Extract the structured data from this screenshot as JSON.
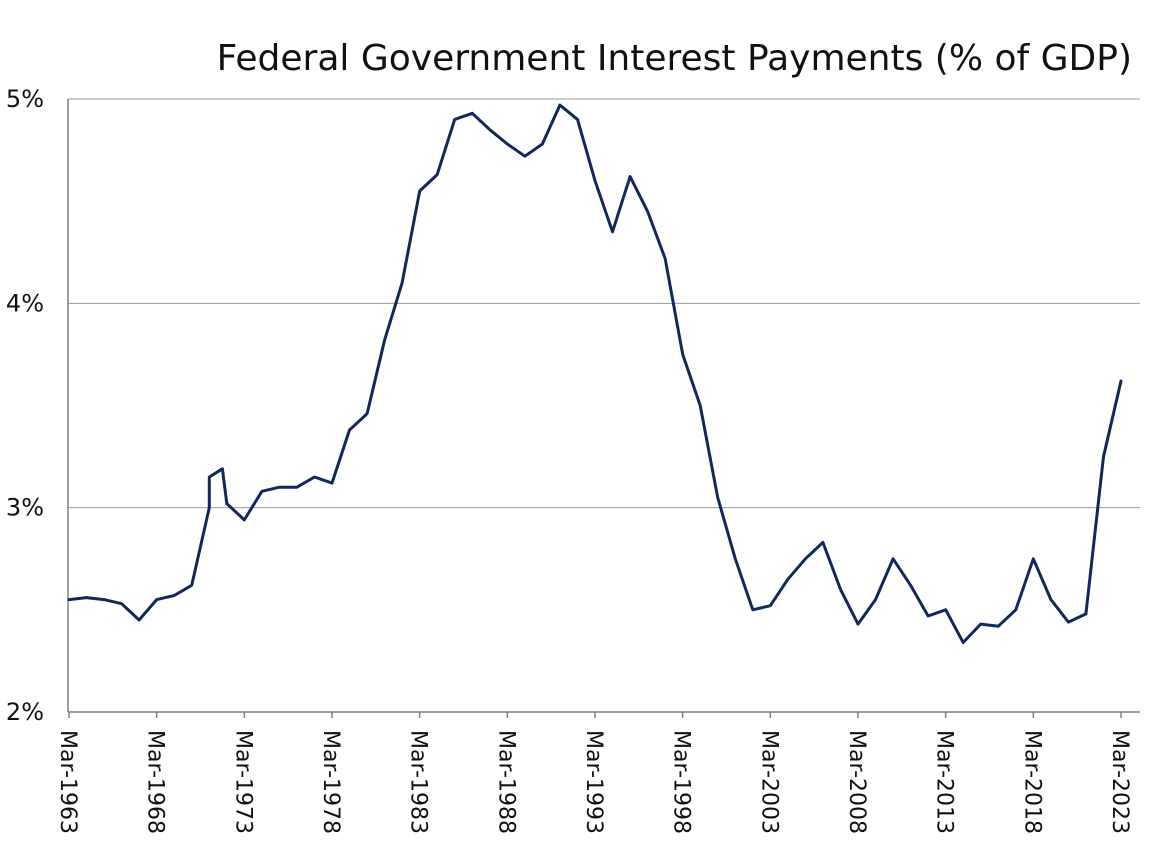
{
  "chart_data": {
    "type": "line",
    "title": "Federal Government Interest Payments (% of GDP)",
    "xlabel": "",
    "ylabel": "",
    "x_start": "Mar-1963",
    "x_end": "Mar-2023",
    "x_tick_labels": [
      "Mar-1963",
      "Mar-1968",
      "Mar-1973",
      "Mar-1978",
      "Mar-1983",
      "Mar-1988",
      "Mar-1993",
      "Mar-1998",
      "Mar-2003",
      "Mar-2008",
      "Mar-2013",
      "Mar-2018",
      "Mar-2023"
    ],
    "y_tick_labels": [
      "2%",
      "3%",
      "4%",
      "5%"
    ],
    "ylim": [
      2,
      5
    ],
    "grid": true,
    "series": [
      {
        "color": "#12275c",
        "points": [
          [
            "Mar-1963",
            2.55
          ],
          [
            "Mar-1964",
            2.56
          ],
          [
            "Mar-1965",
            2.55
          ],
          [
            "Mar-1966",
            2.53
          ],
          [
            "Mar-1967",
            2.45
          ],
          [
            "Mar-1968",
            2.55
          ],
          [
            "Mar-1969",
            2.57
          ],
          [
            "Mar-1970",
            2.62
          ],
          [
            "Mar-1971",
            3.0
          ],
          [
            "Mar-1971",
            3.15
          ],
          [
            "Dec-1971",
            3.19
          ],
          [
            "Mar-1972",
            3.02
          ],
          [
            "Mar-1973",
            2.94
          ],
          [
            "Mar-1974",
            3.08
          ],
          [
            "Mar-1975",
            3.1
          ],
          [
            "Mar-1976",
            3.1
          ],
          [
            "Mar-1977",
            3.15
          ],
          [
            "Mar-1978",
            3.12
          ],
          [
            "Mar-1979",
            3.38
          ],
          [
            "Mar-1980",
            3.46
          ],
          [
            "Mar-1981",
            3.82
          ],
          [
            "Mar-1982",
            4.1
          ],
          [
            "Mar-1983",
            4.55
          ],
          [
            "Mar-1984",
            4.63
          ],
          [
            "Mar-1985",
            4.9
          ],
          [
            "Mar-1986",
            4.93
          ],
          [
            "Mar-1987",
            4.85
          ],
          [
            "Mar-1988",
            4.78
          ],
          [
            "Mar-1989",
            4.72
          ],
          [
            "Mar-1990",
            4.78
          ],
          [
            "Mar-1991",
            4.97
          ],
          [
            "Mar-1992",
            4.9
          ],
          [
            "Mar-1993",
            4.6
          ],
          [
            "Mar-1994",
            4.35
          ],
          [
            "Mar-1995",
            4.62
          ],
          [
            "Mar-1996",
            4.45
          ],
          [
            "Mar-1997",
            4.22
          ],
          [
            "Mar-1998",
            3.75
          ],
          [
            "Mar-1999",
            3.5
          ],
          [
            "Mar-2000",
            3.05
          ],
          [
            "Mar-2001",
            2.75
          ],
          [
            "Mar-2002",
            2.5
          ],
          [
            "Mar-2003",
            2.52
          ],
          [
            "Mar-2004",
            2.65
          ],
          [
            "Mar-2005",
            2.75
          ],
          [
            "Mar-2006",
            2.83
          ],
          [
            "Mar-2007",
            2.6
          ],
          [
            "Mar-2008",
            2.43
          ],
          [
            "Mar-2009",
            2.55
          ],
          [
            "Mar-2010",
            2.75
          ],
          [
            "Mar-2011",
            2.62
          ],
          [
            "Mar-2012",
            2.47
          ],
          [
            "Mar-2013",
            2.5
          ],
          [
            "Mar-2014",
            2.34
          ],
          [
            "Mar-2015",
            2.43
          ],
          [
            "Mar-2016",
            2.42
          ],
          [
            "Mar-2017",
            2.5
          ],
          [
            "Mar-2018",
            2.75
          ],
          [
            "Mar-2019",
            2.55
          ],
          [
            "Mar-2020",
            2.44
          ],
          [
            "Mar-2021",
            2.48
          ],
          [
            "Mar-2022",
            3.25
          ],
          [
            "Mar-2023",
            3.62
          ]
        ]
      }
    ]
  }
}
